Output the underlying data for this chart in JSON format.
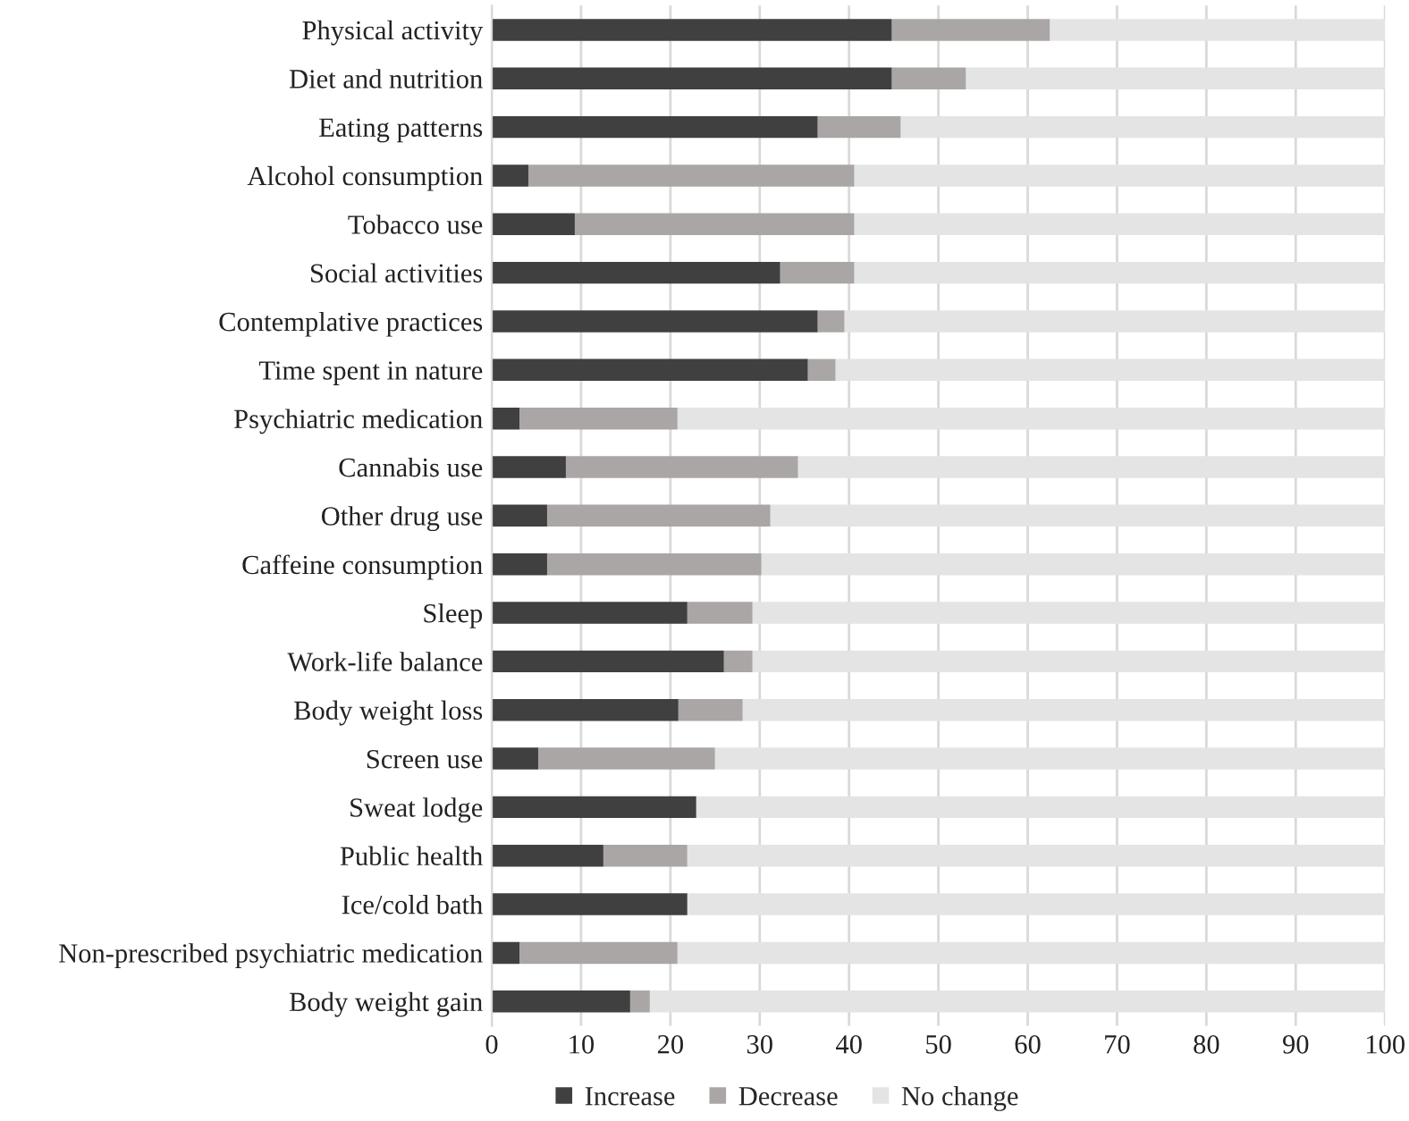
{
  "chart_data": {
    "type": "bar",
    "orientation": "horizontal",
    "stacked": true,
    "categories": [
      "Physical activity",
      "Diet and nutrition",
      "Eating patterns",
      "Alcohol consumption",
      "Tobacco use",
      "Social activities",
      "Contemplative practices",
      "Time spent in nature",
      "Psychiatric medication",
      "Cannabis use",
      "Other drug use",
      "Caffeine consumption",
      "Sleep",
      "Work-life balance",
      "Body weight loss",
      "Screen use",
      "Sweat lodge",
      "Public health",
      "Ice/cold bath",
      "Non-prescribed psychiatric medication",
      "Body weight gain"
    ],
    "series": [
      {
        "name": "Increase",
        "color": "#404040",
        "values": [
          44.8,
          44.8,
          36.5,
          4.1,
          9.3,
          32.3,
          36.5,
          35.4,
          3.1,
          8.3,
          6.2,
          6.2,
          21.9,
          26.0,
          20.9,
          5.2,
          22.9,
          12.5,
          21.9,
          3.1,
          15.5
        ]
      },
      {
        "name": "Decrease",
        "color": "#aaa6a6",
        "values": [
          17.7,
          8.3,
          9.3,
          36.5,
          31.3,
          8.3,
          3.0,
          3.1,
          17.7,
          26.0,
          25.0,
          24.0,
          7.3,
          3.2,
          7.2,
          19.8,
          0,
          9.4,
          0,
          17.7,
          2.2
        ]
      },
      {
        "name": "No change",
        "color": "#e4e4e4",
        "values": [
          37.5,
          46.9,
          54.2,
          59.4,
          59.4,
          59.4,
          60.5,
          61.5,
          79.2,
          65.7,
          68.8,
          69.8,
          70.8,
          70.8,
          71.9,
          75.0,
          77.1,
          78.1,
          78.1,
          79.2,
          82.3
        ]
      }
    ],
    "xlim": [
      0,
      100
    ],
    "xticks": [
      0,
      10,
      20,
      30,
      40,
      50,
      60,
      70,
      80,
      90,
      100
    ],
    "grid": "x",
    "legend": "bottom"
  }
}
